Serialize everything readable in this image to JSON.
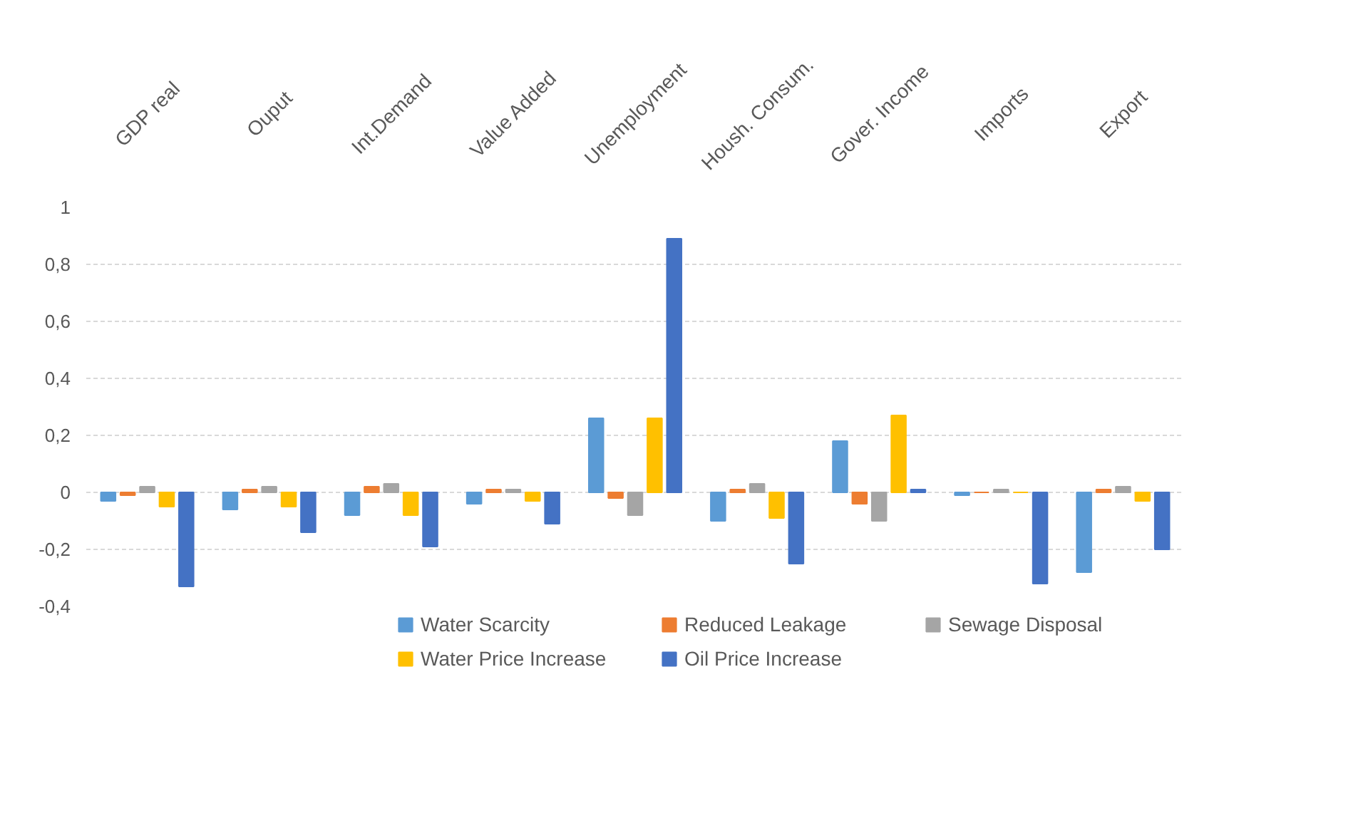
{
  "chart_data": {
    "type": "bar",
    "categories": [
      "GDP real",
      "Ouput",
      "Int.Demand",
      "Value Added",
      "Unemployment",
      "Housh. Consum.",
      "Gover. Income",
      "Imports",
      "Export"
    ],
    "series": [
      {
        "name": "Water Scarcity",
        "color": "#5b9bd5",
        "values": [
          -0.03,
          -0.06,
          -0.08,
          -0.04,
          0.26,
          -0.1,
          0.18,
          -0.01,
          -0.28
        ]
      },
      {
        "name": "Reduced Leakage",
        "color": "#ed7d31",
        "values": [
          -0.01,
          0.01,
          0.02,
          0.01,
          -0.02,
          0.01,
          -0.04,
          0,
          0.01
        ]
      },
      {
        "name": "Sewage Disposal",
        "color": "#a5a5a5",
        "values": [
          0.02,
          0.02,
          0.03,
          0.01,
          -0.08,
          0.03,
          -0.1,
          0.01,
          0.02
        ]
      },
      {
        "name": "Water Price Increase",
        "color": "#ffc000",
        "values": [
          -0.05,
          -0.05,
          -0.08,
          -0.03,
          0.26,
          -0.09,
          0.27,
          0,
          -0.03
        ]
      },
      {
        "name": "Oil Price Increase",
        "color": "#4472c4",
        "values": [
          -0.33,
          -0.14,
          -0.19,
          -0.11,
          0.89,
          -0.25,
          0.01,
          -0.32,
          -0.2
        ]
      }
    ],
    "ylim": [
      -0.4,
      1
    ],
    "yticks": [
      {
        "value": -0.4,
        "label": "-0,4"
      },
      {
        "value": -0.2,
        "label": "-0,2"
      },
      0,
      {
        "value": 0.2,
        "label": "0,2"
      },
      {
        "value": 0.4,
        "label": "0,4"
      },
      {
        "value": 0.6,
        "label": "0,6"
      },
      {
        "value": 0.8,
        "label": "0,8"
      },
      1
    ],
    "grid": "y",
    "legend": "bottom"
  }
}
